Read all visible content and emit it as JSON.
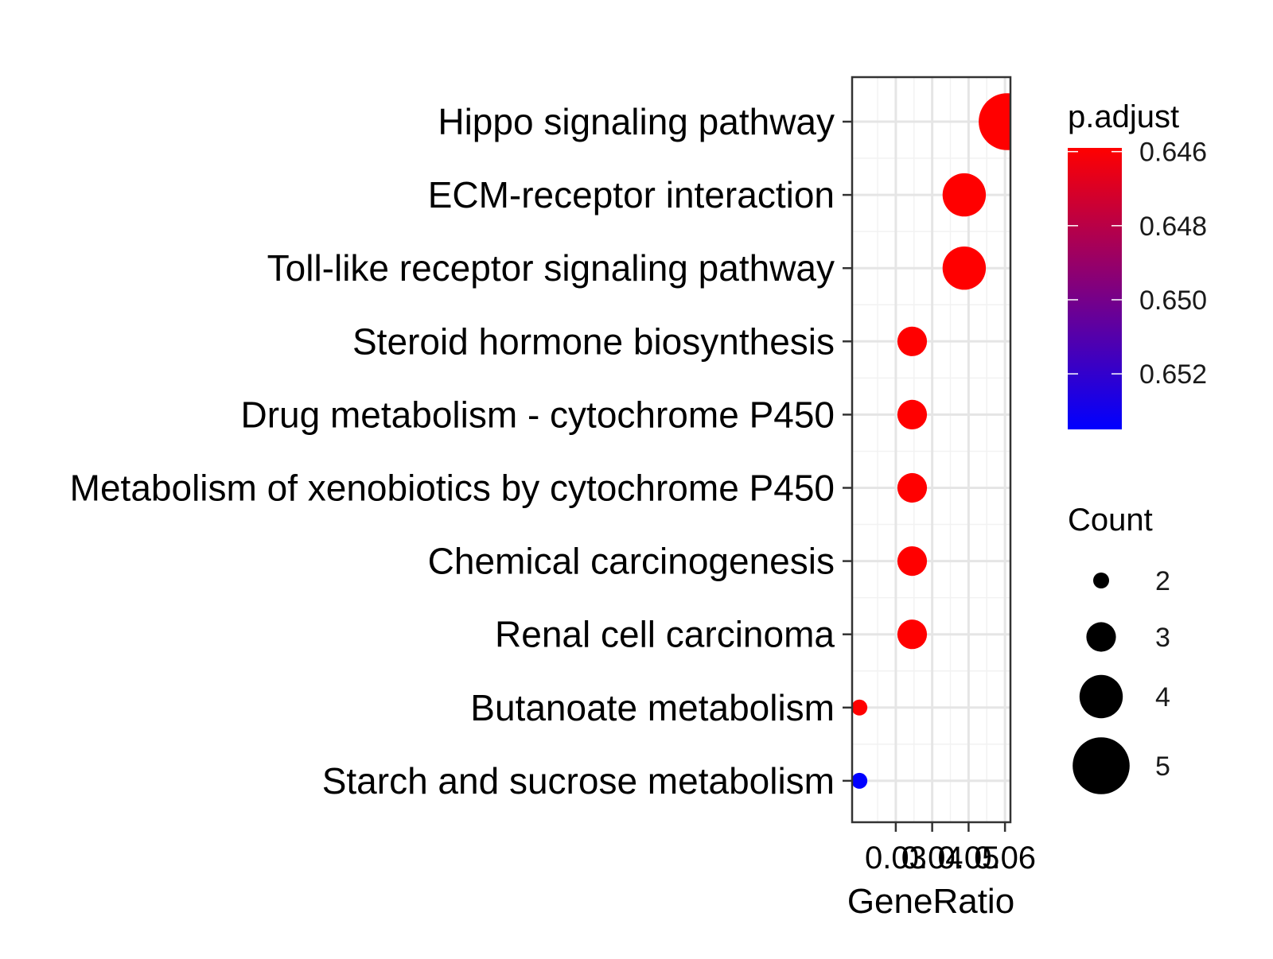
{
  "chart_data": {
    "type": "scatter",
    "title": "",
    "xlabel": "GeneRatio",
    "ylabel": "",
    "xlim": [
      0.018,
      0.0615
    ],
    "x_ticks": [
      0.03,
      0.04,
      0.05,
      0.06
    ],
    "x_tick_labels": [
      "0.03",
      "0.04",
      "0.05",
      "0.06"
    ],
    "grid": true,
    "categories": [
      "Hippo signaling pathway",
      "ECM-receptor interaction",
      "Toll-like receptor signaling pathway",
      "Steroid hormone biosynthesis",
      "Drug metabolism - cytochrome P450",
      "Metabolism of xenobiotics by cytochrome P450",
      "Chemical carcinogenesis",
      "Renal cell carcinoma",
      "Butanoate metabolism",
      "Starch and sucrose metabolism"
    ],
    "gene_ratio": [
      0.0606,
      0.0488,
      0.0488,
      0.0345,
      0.0345,
      0.0345,
      0.0345,
      0.0345,
      0.02,
      0.02
    ],
    "count": [
      5,
      4,
      4,
      3,
      3,
      3,
      3,
      3,
      2,
      2
    ],
    "p_adjust": [
      0.6459,
      0.6459,
      0.6459,
      0.6459,
      0.6459,
      0.6459,
      0.6459,
      0.6459,
      0.6459,
      0.6535
    ],
    "color_legend": {
      "title": "p.adjust",
      "breaks": [
        0.646,
        0.648,
        0.65,
        0.652
      ],
      "break_labels": [
        "0.646",
        "0.648",
        "0.650",
        "0.652"
      ],
      "range": [
        0.6459,
        0.6535
      ],
      "low_color": "#FF0000",
      "high_color": "#0000FF",
      "placement": "right"
    },
    "size_legend": {
      "title": "Count",
      "breaks": [
        2,
        3,
        4,
        5
      ],
      "break_labels": [
        "2",
        "3",
        "4",
        "5"
      ],
      "placement": "right"
    }
  }
}
